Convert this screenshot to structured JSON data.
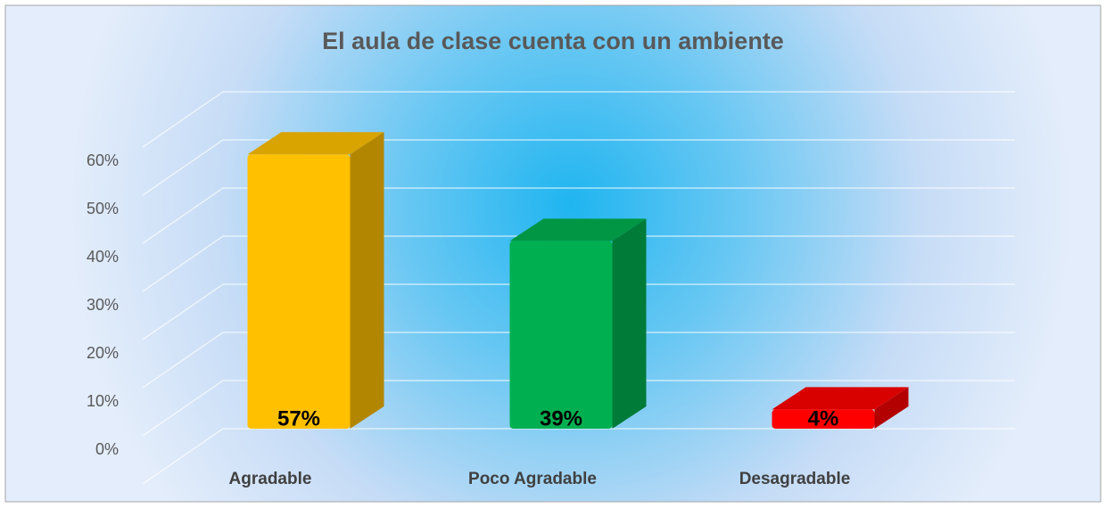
{
  "chart_data": {
    "type": "bar3d",
    "title": "El aula de clase cuenta con un ambiente",
    "categories": [
      "Agradable",
      "Poco Agradable",
      "Desagradable"
    ],
    "values": [
      57,
      39,
      4
    ],
    "value_labels": [
      "57%",
      "39%",
      "4%"
    ],
    "colors": [
      "#ffc000",
      "#00b050",
      "#ff0000"
    ],
    "ylim": [
      0,
      70
    ],
    "yticks": [
      {
        "value": 0,
        "label": "0%"
      },
      {
        "value": 10,
        "label": "10%"
      },
      {
        "value": 20,
        "label": "20%"
      },
      {
        "value": 30,
        "label": "30%"
      },
      {
        "value": 40,
        "label": "40%"
      },
      {
        "value": 50,
        "label": "50%"
      },
      {
        "value": 60,
        "label": "60%"
      }
    ],
    "grid": true
  }
}
